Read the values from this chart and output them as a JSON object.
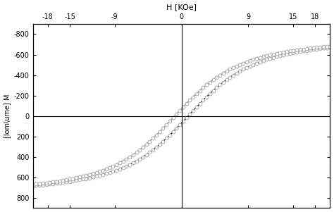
{
  "top_xlabel": "H [KOe]",
  "ylabel": "[lom\\ume] M",
  "xlim": [
    -20,
    20
  ],
  "ylim": [
    -900,
    900
  ],
  "xtick_positions": [
    -18,
    -15,
    -9,
    0,
    9,
    15,
    18
  ],
  "xtick_labels": [
    "-18",
    "-15",
    "-9",
    "0",
    "9",
    "15",
    "18"
  ],
  "ytick_positions": [
    -800,
    -600,
    -400,
    -200,
    0,
    200,
    400,
    600,
    800
  ],
  "ytick_labels": [
    "-800",
    "-600",
    "-400",
    "-200",
    "0",
    "200",
    "400",
    "600",
    "800"
  ],
  "bg_color": "#ffffff",
  "line_color_black": "#000000",
  "line_color_gray": "#aaaaaa",
  "marker_edge_color": "#aaaaaa",
  "Ms": 820,
  "a_param": 3.5,
  "Hc": 0.9,
  "n_line": 300,
  "n_scatter": 90
}
